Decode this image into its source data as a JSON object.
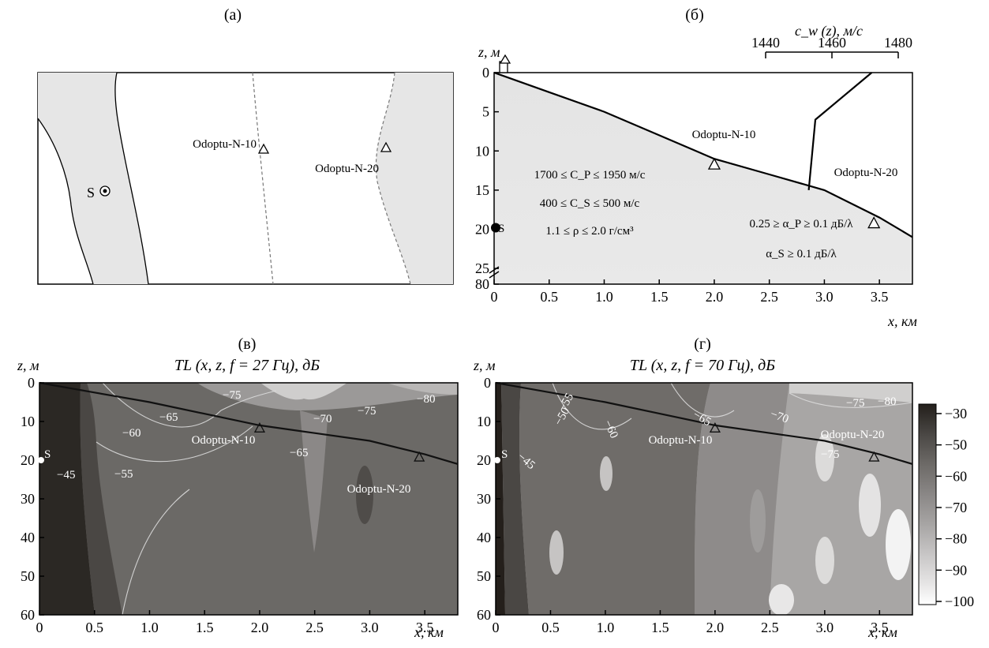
{
  "panels": {
    "a": {
      "label": "(а)",
      "source_label": "S",
      "sites": [
        "Odoptu-N-10",
        "Odoptu-N-20"
      ]
    },
    "b": {
      "label": "(б)",
      "z_label": "z, м",
      "x_label": "x, км",
      "cw_label": "c_w (z), м/с",
      "cw_ticks": [
        "1440",
        "1460",
        "1480"
      ],
      "z_ticks": [
        "0",
        "5",
        "10",
        "15",
        "20",
        "25",
        "80"
      ],
      "x_ticks": [
        "0",
        "0.5",
        "1.0",
        "1.5",
        "2.0",
        "2.5",
        "3.0",
        "3.5"
      ],
      "source_label": "S",
      "sites": [
        "Odoptu-N-10",
        "Odoptu-N-20"
      ],
      "params_left": [
        "1700 ≤ C_P ≤ 1950 м/с",
        "400 ≤ C_S ≤ 500 м/с",
        "1.1 ≤ ρ ≤ 2.0 г/см³"
      ],
      "params_right": [
        "0.25 ≥ α_P ≥ 0.1 дБ/λ",
        "α_S ≥ 0.1 дБ/λ"
      ]
    },
    "c": {
      "label": "(в)",
      "title": "TL (x, z, f = 27 Гц), дБ",
      "z_label": "z, м",
      "x_label": "x, км",
      "z_ticks": [
        "0",
        "10",
        "20",
        "30",
        "40",
        "50",
        "60"
      ],
      "x_ticks": [
        "0",
        "0.5",
        "1.0",
        "1.5",
        "2.0",
        "2.5",
        "3.0",
        "3.5"
      ],
      "source_label": "S",
      "sites": [
        "Odoptu-N-10",
        "Odoptu-N-20"
      ],
      "contour_labels": [
        "−75",
        "−80",
        "−70",
        "−75",
        "−65",
        "−60",
        "−65",
        "−45",
        "−55"
      ]
    },
    "d": {
      "label": "(г)",
      "title": "TL (x, z, f = 70 Гц), дБ",
      "z_label": "z, м",
      "x_label": "x, км",
      "z_ticks": [
        "0",
        "10",
        "20",
        "30",
        "40",
        "50",
        "60"
      ],
      "x_ticks": [
        "0",
        "0.5",
        "1.0",
        "1.5",
        "2.0",
        "2.5",
        "3.0",
        "3.5"
      ],
      "source_label": "S",
      "sites": [
        "Odoptu-N-10",
        "Odoptu-N-20"
      ],
      "contour_labels": [
        "−55",
        "−50",
        "−60",
        "−65",
        "−70",
        "−75",
        "−80",
        "−45",
        "−75"
      ]
    }
  },
  "colorbar": {
    "ticks": [
      "−30",
      "−50",
      "−60",
      "−70",
      "−80",
      "−90",
      "−100"
    ]
  },
  "chart_data": [
    {
      "type": "line",
      "panel": "б",
      "x": [
        0,
        0.5,
        1.0,
        1.5,
        2.0,
        2.5,
        3.0,
        3.5,
        3.8
      ],
      "series": [
        {
          "values": [
            0,
            2.5,
            5,
            8,
            11,
            13,
            15,
            18.5,
            21
          ]
        }
      ],
      "markers": {
        "x": [
          2.0,
          3.45
        ],
        "z": [
          11.7,
          19.2
        ]
      },
      "source": {
        "x": 0,
        "z": 20
      },
      "sound_speed_profile": {
        "c": [
          1472,
          1455,
          1453
        ],
        "z": [
          0,
          6,
          15
        ]
      },
      "xlim": [
        0,
        3.8
      ],
      "ylim": [
        0,
        27
      ]
    },
    {
      "type": "heatmap",
      "panel": "в",
      "frequency_hz": 27,
      "xlim": [
        0,
        3.8
      ],
      "ylim": [
        0,
        60
      ],
      "colorbar_range": [
        -100,
        -30
      ]
    },
    {
      "type": "heatmap",
      "panel": "г",
      "frequency_hz": 70,
      "xlim": [
        0,
        3.8
      ],
      "ylim": [
        0,
        60
      ],
      "colorbar_range": [
        -100,
        -30
      ]
    }
  ],
  "colors": {
    "seabed_fill": "#e6e6e6",
    "tl_high": "#2a2723",
    "tl_low": "#ffffff"
  }
}
